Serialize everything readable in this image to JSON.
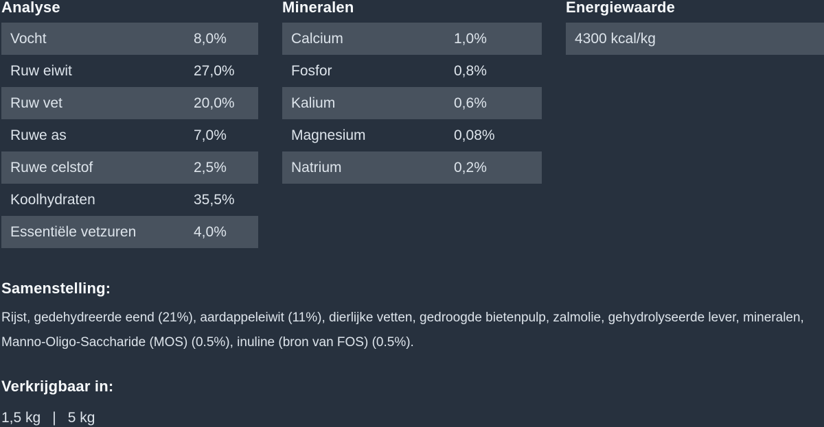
{
  "theme": {
    "background": "#27313e",
    "row_highlight": "#48525e",
    "body_text": "#dde4eb",
    "heading_text": "#f7fafc"
  },
  "analyse": {
    "title": "Analyse",
    "rows": [
      {
        "label": "Vocht",
        "value": "8,0%"
      },
      {
        "label": "Ruw eiwit",
        "value": "27,0%"
      },
      {
        "label": "Ruw vet",
        "value": "20,0%"
      },
      {
        "label": "Ruwe as",
        "value": "7,0%"
      },
      {
        "label": "Ruwe celstof",
        "value": "2,5%"
      },
      {
        "label": "Koolhydraten",
        "value": "35,5%"
      },
      {
        "label": "Essentiële vetzuren",
        "value": "4,0%"
      }
    ]
  },
  "mineralen": {
    "title": "Mineralen",
    "rows": [
      {
        "label": "Calcium",
        "value": "1,0%"
      },
      {
        "label": "Fosfor",
        "value": "0,8%"
      },
      {
        "label": "Kalium",
        "value": "0,6%"
      },
      {
        "label": "Magnesium",
        "value": "0,08%"
      },
      {
        "label": "Natrium",
        "value": "0,2%"
      }
    ]
  },
  "energiewaarde": {
    "title": "Energiewaarde",
    "value": "4300 kcal/kg"
  },
  "samenstelling": {
    "title": "Samenstelling:",
    "text": "Rijst, gedehydreerde eend (21%), aardappeleiwit (11%), dierlijke vetten, gedroogde bietenpulp, zalmolie, gehydrolyseerde lever, mineralen, Manno-Oligo-Saccharide (MOS) (0.5%), inuline (bron van FOS) (0.5%)."
  },
  "verkrijgbaar": {
    "title": "Verkrijgbaar in:",
    "sizes": [
      "1,5 kg",
      "5 kg"
    ],
    "separator": "|"
  }
}
